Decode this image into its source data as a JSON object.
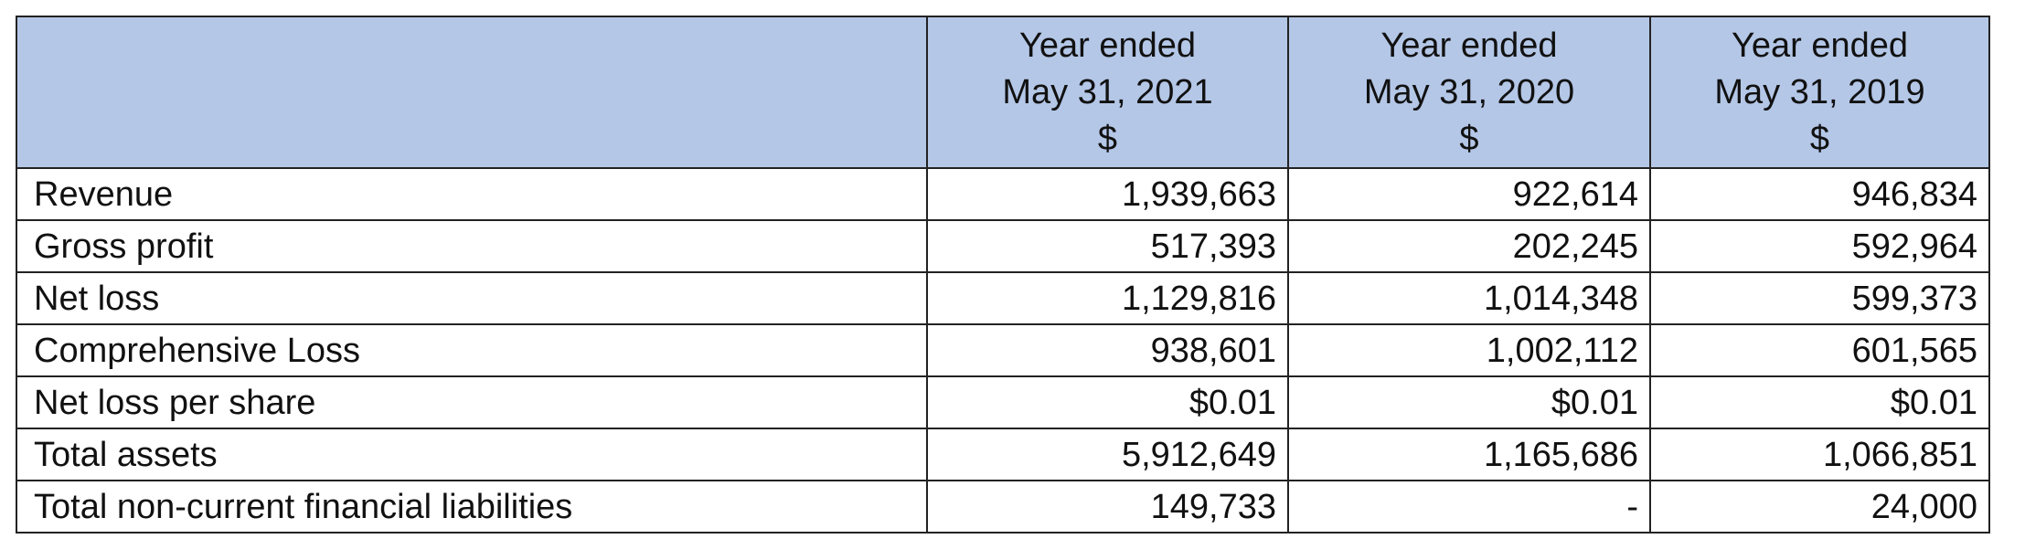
{
  "table": {
    "header": [
      [
        "Year ended",
        "May 31, 2021",
        "$"
      ],
      [
        "Year ended",
        "May 31, 2020",
        "$"
      ],
      [
        "Year ended",
        "May 31, 2019",
        "$"
      ]
    ],
    "rows": [
      [
        "Revenue",
        "1,939,663",
        "922,614",
        "946,834"
      ],
      [
        "Gross profit",
        "517,393",
        "202,245",
        "592,964"
      ],
      [
        "Net loss",
        "1,129,816",
        "1,014,348",
        "599,373"
      ],
      [
        "Comprehensive Loss",
        "938,601",
        "1,002,112",
        "601,565"
      ],
      [
        "Net loss per share",
        "$0.01",
        "$0.01",
        "$0.01"
      ],
      [
        "Total assets",
        "5,912,649",
        "1,165,686",
        "1,066,851"
      ],
      [
        "Total non-current financial liabilities",
        "149,733",
        "-",
        "24,000"
      ]
    ]
  }
}
